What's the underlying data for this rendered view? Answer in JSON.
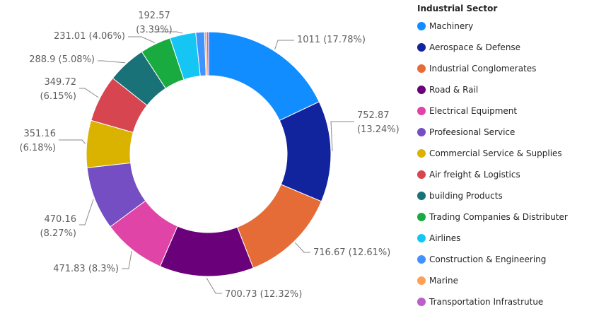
{
  "chart_data": {
    "type": "pie",
    "variant": "donut",
    "legend": {
      "title": "Industrial Sector",
      "position": "right"
    },
    "slices": [
      {
        "name": "Machinery",
        "value": 1011,
        "percent": "17.78%",
        "color": "#118DFF",
        "label": "1011 (17.78%)"
      },
      {
        "name": "Aerospace & Defense",
        "value": 752.87,
        "percent": "13.24%",
        "color": "#12239E",
        "label": "752.87 (13.24%)"
      },
      {
        "name": "Industrial Conglomerates",
        "value": 716.67,
        "percent": "12.61%",
        "color": "#E66C37",
        "label": "716.67 (12.61%)"
      },
      {
        "name": "Road & Rail",
        "value": 700.73,
        "percent": "12.32%",
        "color": "#6B007B",
        "label": "700.73 (12.32%)"
      },
      {
        "name": "Electrical Equipment",
        "value": 471.83,
        "percent": "8.3%",
        "color": "#E044A7",
        "label": "471.83 (8.3%)"
      },
      {
        "name": "Profeesional Service",
        "value": 470.16,
        "percent": "8.27%",
        "color": "#744EC2",
        "label": "470.16 (8.27%)"
      },
      {
        "name": "Commercial Service & Supplies",
        "value": 351.16,
        "percent": "6.18%",
        "color": "#D9B300",
        "label": "351.16 (6.18%)"
      },
      {
        "name": "Air freight & Logistics",
        "value": 349.72,
        "percent": "6.15%",
        "color": "#D64550",
        "label": "349.72 (6.15%)"
      },
      {
        "name": "building Products",
        "value": 288.9,
        "percent": "5.08%",
        "color": "#197278",
        "label": "288.9 (5.08%)"
      },
      {
        "name": "Trading Companies & Distributer",
        "value": 231.01,
        "percent": "4.06%",
        "color": "#1AAB40",
        "label": "231.01 (4.06%)"
      },
      {
        "name": "Airlines",
        "value": 192.57,
        "percent": "3.39%",
        "color": "#15C6F4",
        "label": "192.57 (3.39%)"
      },
      {
        "name": "Construction & Engineering",
        "value": 65,
        "color": "#4092FF",
        "label": ""
      },
      {
        "name": "Marine",
        "value": 15,
        "color": "#FFA058",
        "label": ""
      },
      {
        "name": "Transportation Infrastrutue",
        "value": 15,
        "color": "#BE5DC9",
        "label": ""
      }
    ]
  }
}
